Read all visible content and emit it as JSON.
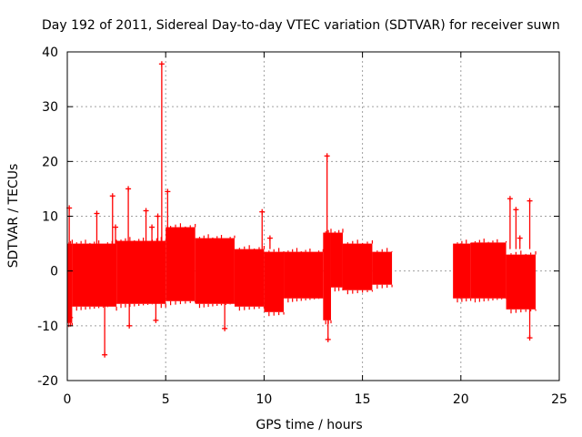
{
  "chart_data": {
    "type": "scatter",
    "title": "Day 192 of 2011, Sidereal Day-to-day VTEC variation (SDTVAR) for receiver suwn",
    "xlabel": "GPS time / hours",
    "ylabel": "SDTVAR / TECUs",
    "xlim": [
      0,
      25
    ],
    "ylim": [
      -20,
      40
    ],
    "xticks": [
      0,
      5,
      10,
      15,
      20,
      25
    ],
    "yticks": [
      -20,
      -10,
      0,
      10,
      20,
      30,
      40
    ],
    "grid": true,
    "series_color": "#ff0000",
    "series": [
      {
        "name": "SDTVAR",
        "bands": [
          {
            "x": [
              0.0,
              0.25
            ],
            "low": -9.5,
            "high": 5
          },
          {
            "x": [
              0.25,
              2.5
            ],
            "low": -6.5,
            "high": 5
          },
          {
            "x": [
              2.5,
              5.0
            ],
            "low": -6,
            "high": 5.5
          },
          {
            "x": [
              5.0,
              6.5
            ],
            "low": -5.5,
            "high": 8
          },
          {
            "x": [
              6.5,
              8.5
            ],
            "low": -6,
            "high": 6
          },
          {
            "x": [
              8.5,
              10.0
            ],
            "low": -6.5,
            "high": 4
          },
          {
            "x": [
              10.0,
              11.0
            ],
            "low": -7.5,
            "high": 3.5
          },
          {
            "x": [
              11.0,
              13.0
            ],
            "low": -5,
            "high": 3.5
          },
          {
            "x": [
              13.0,
              13.4
            ],
            "low": -9,
            "high": 7
          },
          {
            "x": [
              13.4,
              14.0
            ],
            "low": -3,
            "high": 7
          },
          {
            "x": [
              14.0,
              15.5
            ],
            "low": -3.5,
            "high": 5
          },
          {
            "x": [
              15.5,
              16.5
            ],
            "low": -2.5,
            "high": 3.5
          },
          {
            "x": [
              19.6,
              20.5
            ],
            "low": -5,
            "high": 5
          },
          {
            "x": [
              20.5,
              22.3
            ],
            "low": -5,
            "high": 5.2
          },
          {
            "x": [
              22.3,
              23.8
            ],
            "low": -7,
            "high": 3
          }
        ],
        "spikes": [
          {
            "x": 0.1,
            "y": 11.5
          },
          {
            "x": 0.15,
            "y": -8.5
          },
          {
            "x": 1.5,
            "y": 10.5
          },
          {
            "x": 1.9,
            "y": -15.3
          },
          {
            "x": 2.3,
            "y": 13.7
          },
          {
            "x": 2.45,
            "y": 8
          },
          {
            "x": 3.1,
            "y": 15
          },
          {
            "x": 3.15,
            "y": -10
          },
          {
            "x": 4.0,
            "y": 11
          },
          {
            "x": 4.3,
            "y": 8
          },
          {
            "x": 4.5,
            "y": -9
          },
          {
            "x": 4.6,
            "y": 10
          },
          {
            "x": 4.8,
            "y": 37.8
          },
          {
            "x": 5.1,
            "y": 14.5
          },
          {
            "x": 8.0,
            "y": -10.5
          },
          {
            "x": 9.9,
            "y": 10.8
          },
          {
            "x": 10.3,
            "y": 6
          },
          {
            "x": 13.2,
            "y": 21
          },
          {
            "x": 13.25,
            "y": -12.5
          },
          {
            "x": 22.5,
            "y": 13.2
          },
          {
            "x": 22.8,
            "y": 11.2
          },
          {
            "x": 23.0,
            "y": 6
          },
          {
            "x": 23.5,
            "y": 12.8
          },
          {
            "x": 23.5,
            "y": -12.2
          }
        ]
      }
    ]
  }
}
